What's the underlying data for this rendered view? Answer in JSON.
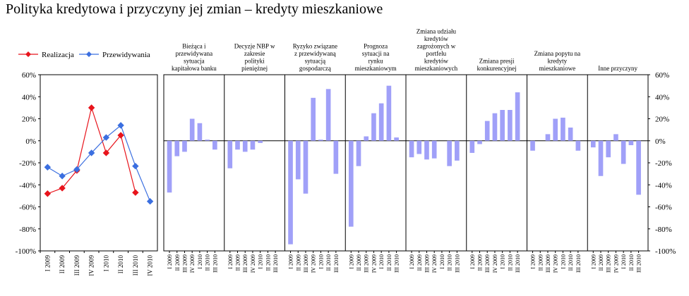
{
  "title": "Polityka kredytowa i przyczyny jej zmian – kredyty mieszkaniowe",
  "colors": {
    "realizacja": "#e8141c",
    "przewidywania": "#3b6fe0",
    "bars": "#a0a0f8",
    "frame": "#000000"
  },
  "chart_data": [
    {
      "type": "line",
      "title": "",
      "legend_position": "top",
      "x": [
        "I 2009",
        "II 2009",
        "III 2009",
        "IV 2009",
        "I 2010",
        "II 2010",
        "III 2010",
        "IV 2010"
      ],
      "y_ticks": [
        "60%",
        "40%",
        "20%",
        "0%",
        "-20%",
        "-40%",
        "-60%",
        "-80%",
        "-100%"
      ],
      "ylim": [
        -100,
        60
      ],
      "series": [
        {
          "name": "Realizacja",
          "values": [
            -48,
            -43,
            -27,
            30,
            -11,
            5,
            -47,
            null
          ]
        },
        {
          "name": "Przewidywania",
          "values": [
            -24,
            -32,
            -26,
            -11,
            3,
            14,
            -23,
            -55
          ]
        }
      ]
    },
    {
      "type": "bar",
      "ylim": [
        -100,
        60
      ],
      "y_ticks": [
        "60%",
        "40%",
        "20%",
        "0%",
        "-20%",
        "-40%",
        "-60%",
        "-80%",
        "-100%"
      ],
      "categories": [
        "I 2009",
        "II 2009",
        "III 2009",
        "IV 2009",
        "I 2010",
        "II 2010",
        "III 2010"
      ],
      "groups": [
        {
          "label": "Bieżąca i przewidywana sytuacja kapitałowa banku",
          "values": [
            -47,
            -14,
            -10,
            20,
            16,
            1,
            -8
          ]
        },
        {
          "label": "Decyzje NBP w zakresie polityki pieniężnej",
          "values": [
            -25,
            -8,
            -10,
            -8,
            -2,
            0,
            0
          ]
        },
        {
          "label": "Ryzyko związane z przewidywaną sytuacją gospodarczą",
          "values": [
            -94,
            -35,
            -48,
            39,
            1,
            47,
            -30
          ]
        },
        {
          "label": "Prognoza sytuacji na rynku mieszkaniowym",
          "values": [
            -78,
            -23,
            4,
            25,
            34,
            50,
            3
          ]
        },
        {
          "label": "Zmiana udziału kredytów zagrożonych w portfelu kredytów mieszkaniowych",
          "values": [
            -15,
            -12,
            -17,
            -16,
            0,
            -23,
            -18
          ]
        },
        {
          "label": "Zmiana presji konkurencyjnej",
          "values": [
            -11,
            -3,
            18,
            25,
            28,
            28,
            44
          ]
        },
        {
          "label": "Zmiana popytu na kredyty mieszkaniowe",
          "values": [
            -9,
            0,
            6,
            20,
            21,
            12,
            -9
          ]
        },
        {
          "label": "Inne przyczyny",
          "values": [
            -6,
            -32,
            -15,
            6,
            -21,
            -4,
            -49
          ]
        }
      ]
    }
  ]
}
